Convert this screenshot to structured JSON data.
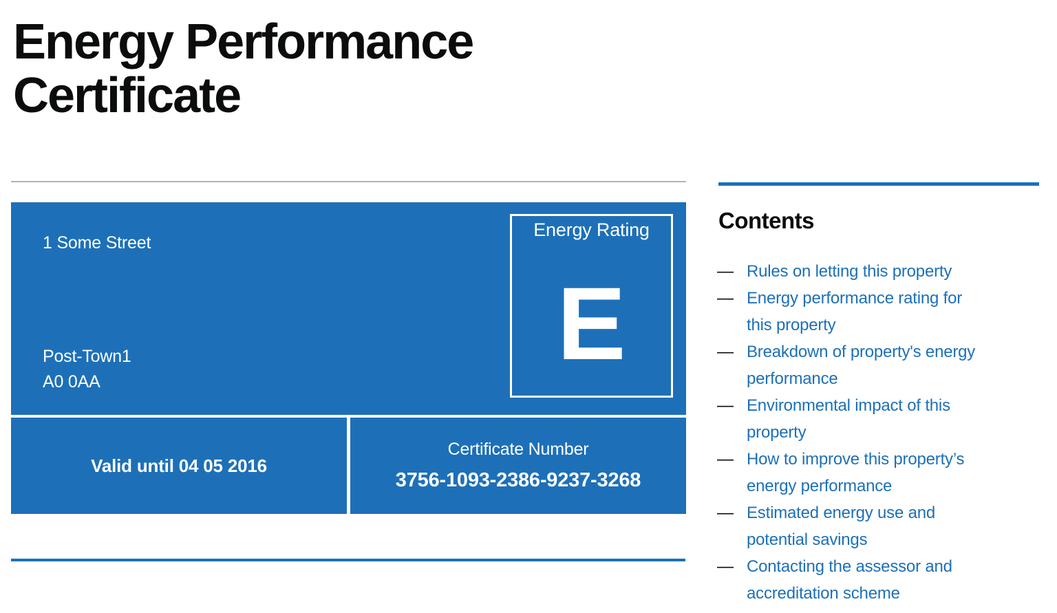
{
  "page": {
    "title": "Energy Performance\nCertificate"
  },
  "panel": {
    "address": {
      "street": "1 Some Street",
      "town": "Post-Town1",
      "postcode": "A0 0AA"
    },
    "rating": {
      "label": "Energy Rating",
      "value": "E"
    },
    "validity": "Valid until 04 05 2016",
    "certificate": {
      "label": "Certificate Number",
      "number": "3756-1093-2386-9237-3268"
    }
  },
  "contents": {
    "heading": "Contents",
    "bullet": "—",
    "items": [
      {
        "label": "Rules on letting this property"
      },
      {
        "label": "Energy performance rating for\nthis property"
      },
      {
        "label": "Breakdown of property's energy\nperformance"
      },
      {
        "label": "Environmental impact of this\nproperty"
      },
      {
        "label": "How to improve this property’s\nenergy performance"
      },
      {
        "label": "Estimated energy use and\npotential savings"
      },
      {
        "label": "Contacting the assessor and\naccreditation scheme"
      }
    ]
  },
  "colors": {
    "brand_blue": "#1d70b8",
    "text_black": "#0b0c0c",
    "rule_grey": "#b1b4b6",
    "panel_text_white": "#ffffff"
  }
}
